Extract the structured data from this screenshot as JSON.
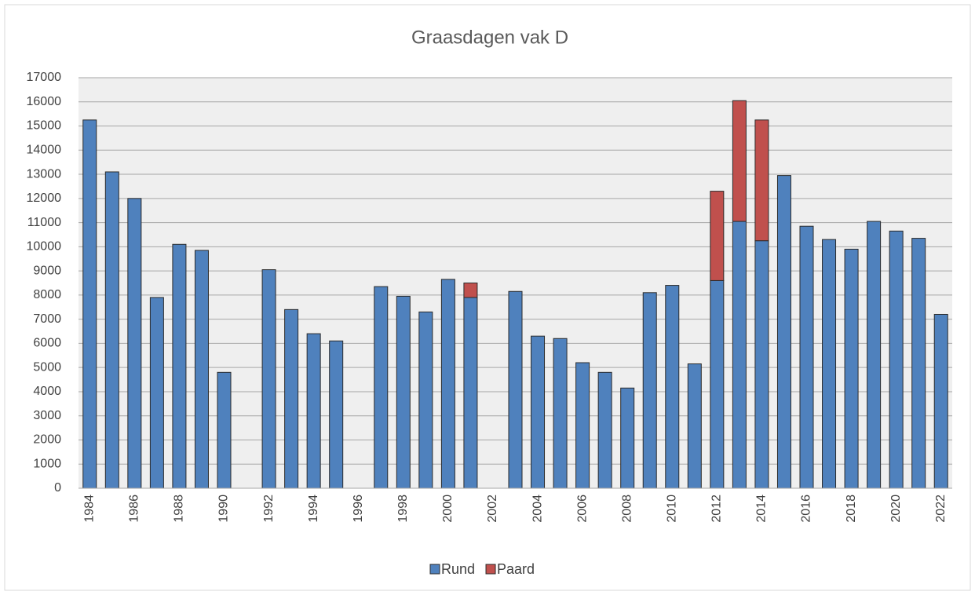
{
  "chart_data": {
    "type": "stacked_bar",
    "title": "Graasdagen vak D",
    "categories": [
      "1984",
      null,
      "1986",
      null,
      "1988",
      null,
      "1990",
      null,
      "1992",
      null,
      "1994",
      null,
      "1996",
      null,
      "1998",
      null,
      "2000",
      null,
      "2002",
      null,
      "2004",
      null,
      "2006",
      null,
      "2008",
      null,
      "2010",
      null,
      "2012",
      null,
      "2014",
      null,
      "2016",
      null,
      "2018",
      null,
      "2020",
      null,
      "2022"
    ],
    "series": [
      {
        "name": "Rund",
        "color": "#4f81bd",
        "values": [
          15250,
          13100,
          12000,
          7900,
          10100,
          9850,
          4800,
          null,
          9050,
          7400,
          6400,
          6100,
          null,
          8350,
          7950,
          7300,
          8650,
          7900,
          null,
          8150,
          6300,
          6200,
          5200,
          4800,
          4150,
          8100,
          8400,
          5150,
          8600,
          11050,
          10250,
          12950,
          10850,
          10300,
          9900,
          11050,
          10650,
          10350,
          7200
        ]
      },
      {
        "name": "Paard",
        "color": "#c0504d",
        "values": [
          null,
          null,
          null,
          null,
          null,
          null,
          null,
          null,
          null,
          null,
          null,
          null,
          null,
          null,
          null,
          null,
          null,
          600,
          null,
          null,
          null,
          null,
          null,
          null,
          null,
          null,
          null,
          null,
          3700,
          5000,
          5000,
          null,
          null,
          null,
          null,
          null,
          null,
          null,
          null
        ]
      }
    ],
    "ylim": [
      0,
      17000
    ],
    "yticks": [
      0,
      1000,
      2000,
      3000,
      4000,
      5000,
      6000,
      7000,
      8000,
      9000,
      10000,
      11000,
      12000,
      13000,
      14000,
      15000,
      16000,
      17000
    ],
    "grid": true,
    "legend": "bottom"
  }
}
